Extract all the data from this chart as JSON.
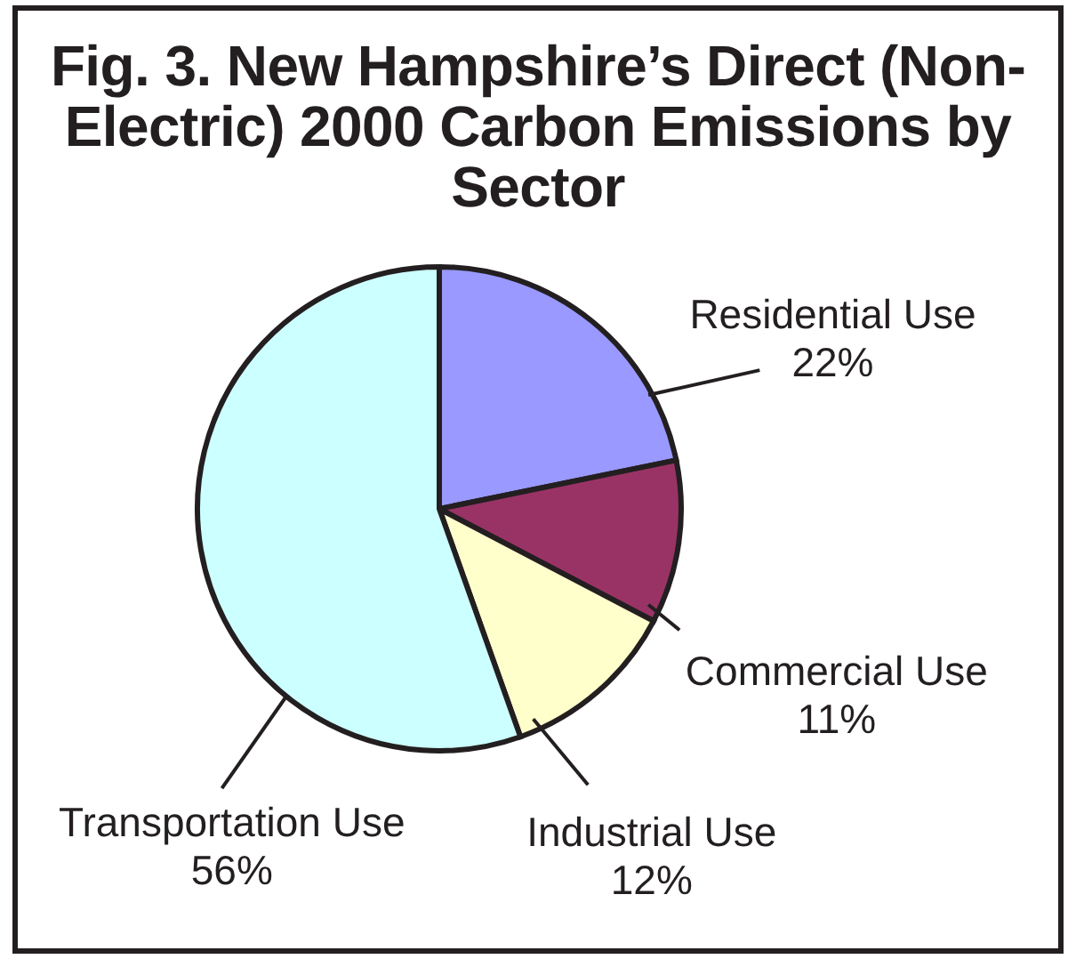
{
  "chart_data": {
    "type": "pie",
    "title": "Fig. 3. New Hampshire’s Direct (Non-Electric) 2000 Carbon Emissions by Sector",
    "categories": [
      "Residential Use",
      "Commercial Use",
      "Industrial Use",
      "Transportation Use"
    ],
    "values": [
      22,
      11,
      12,
      56
    ],
    "colors": [
      "#9999ff",
      "#993366",
      "#ffffcc",
      "#ccffff"
    ],
    "value_labels": [
      "22%",
      "11%",
      "12%",
      "56%"
    ]
  }
}
